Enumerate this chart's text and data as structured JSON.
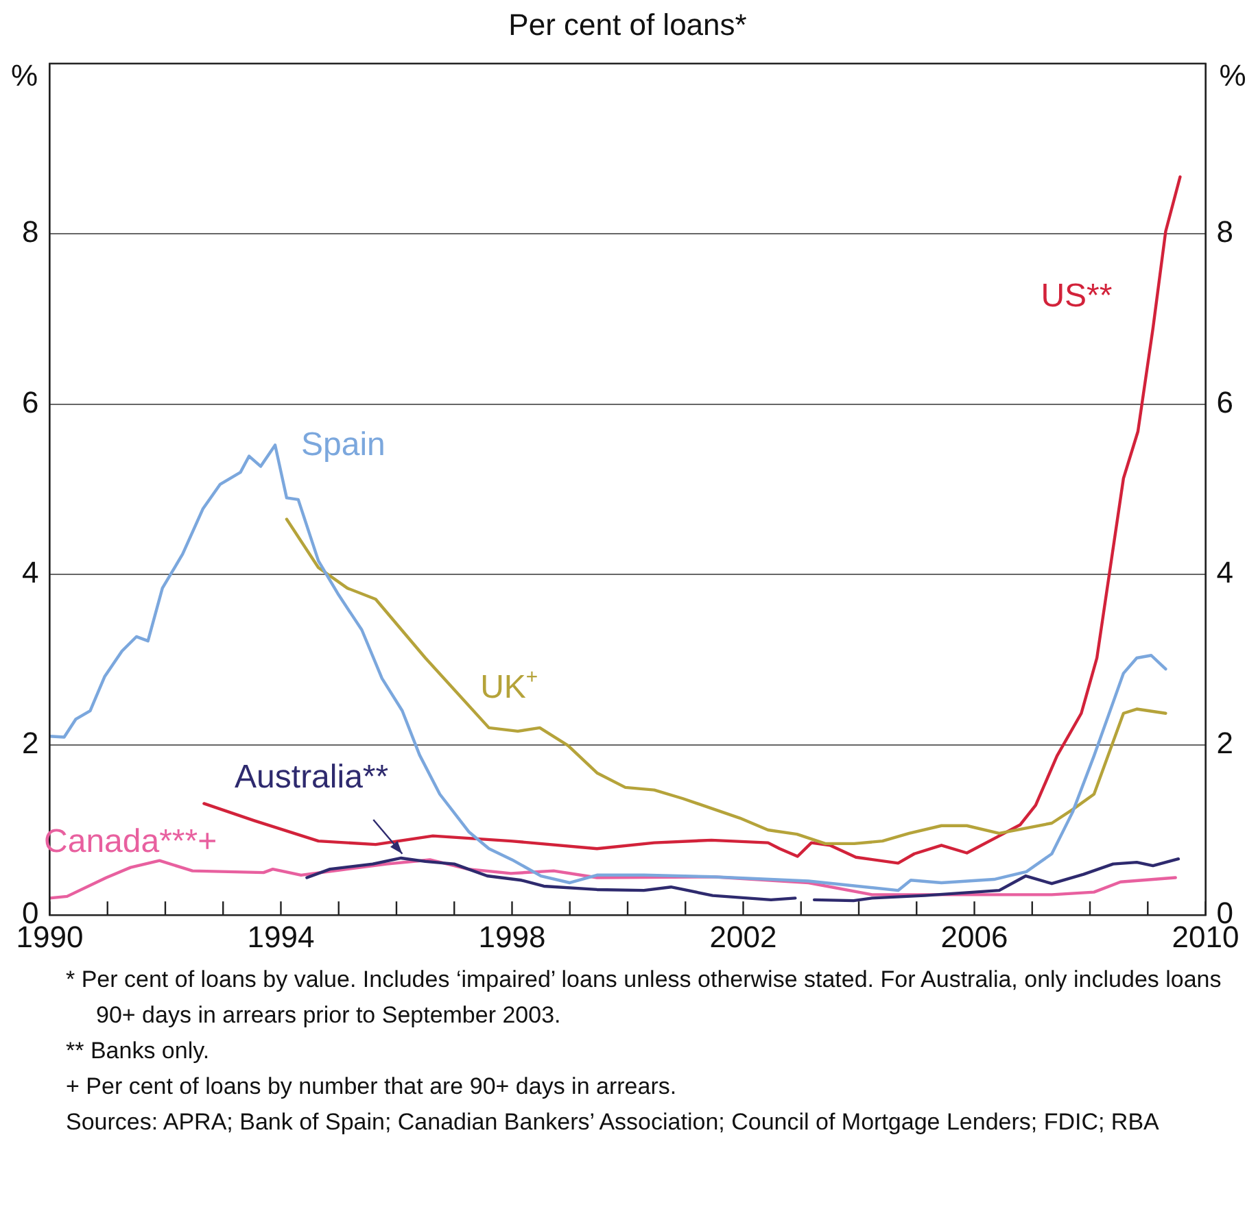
{
  "chart_data": {
    "type": "line",
    "subtitle": "Per cent of loans*",
    "ylabel": "%",
    "y2label": "%",
    "xlim": [
      1990,
      2010
    ],
    "xticks": [
      1990,
      {
        "value": 1991,
        "label": null
      },
      {
        "value": 1992,
        "label": null
      },
      {
        "value": 1993,
        "label": null
      },
      1994,
      {
        "value": 1995,
        "label": null
      },
      {
        "value": 1996,
        "label": null
      },
      {
        "value": 1997,
        "label": null
      },
      1998,
      {
        "value": 1999,
        "label": null
      },
      {
        "value": 2000,
        "label": null
      },
      {
        "value": 2001,
        "label": null
      },
      2002,
      {
        "value": 2003,
        "label": null
      },
      {
        "value": 2004,
        "label": null
      },
      {
        "value": 2005,
        "label": null
      },
      2006,
      {
        "value": 2007,
        "label": null
      },
      {
        "value": 2008,
        "label": null
      },
      {
        "value": 2009,
        "label": null
      },
      2010
    ],
    "ylim": [
      0,
      10
    ],
    "yticks": [
      0,
      2,
      4,
      6,
      8
    ],
    "y2lim": [
      0,
      10
    ],
    "y2ticks": [
      0,
      2,
      4,
      6,
      8
    ],
    "grid": "y",
    "line_style": "solid",
    "marker": "none",
    "series": [
      {
        "name": "Spain",
        "color": "#7ba7dd",
        "x": [
          1990,
          1990.25,
          1990.45,
          1990.7,
          1990.95,
          1991.25,
          1991.5,
          1991.7,
          1991.95,
          1992.3,
          1992.65,
          1992.95,
          1993.3,
          1993.45,
          1993.65,
          1993.9,
          1994.1,
          1994.3,
          1994.65,
          1995,
          1995.4,
          1995.75,
          1996.1,
          1996.4,
          1996.75,
          1997.25,
          1997.6,
          1998,
          1998.5,
          1999,
          1999.47,
          2000.28,
          2001.47,
          2003.13,
          2004.68,
          2004.9,
          2005.43,
          2006.34,
          2006.9,
          2007.34,
          2007.7,
          2008.07,
          2008.58,
          2008.81,
          2009.06,
          2009.31
        ],
        "values": [
          2.1,
          2.09,
          2.3,
          2.4,
          2.8,
          3.1,
          3.27,
          3.22,
          3.84,
          4.24,
          4.77,
          5.06,
          5.2,
          5.39,
          5.27,
          5.52,
          4.9,
          4.88,
          4.16,
          3.76,
          3.35,
          2.78,
          2.4,
          1.88,
          1.42,
          0.98,
          0.78,
          0.65,
          0.46,
          0.38,
          0.47,
          0.47,
          0.45,
          0.4,
          0.29,
          0.41,
          0.38,
          0.42,
          0.51,
          0.72,
          1.21,
          1.87,
          2.84,
          3.02,
          3.05,
          2.89
        ]
      },
      {
        "name": "UK$^{+}$",
        "color": "#b5a33a",
        "x": [
          1994.1,
          1994.65,
          1995.15,
          1995.64,
          1996.5,
          1997.6,
          1998.1,
          1998.48,
          1998.97,
          1999.47,
          1999.96,
          2000.46,
          2000.95,
          2001.94,
          2002.43,
          2002.93,
          2003.42,
          2003.92,
          2004.41,
          2004.87,
          2005.43,
          2005.87,
          2006.43,
          2007.34,
          2007.7,
          2008.07,
          2008.58,
          2008.81,
          2009.31
        ],
        "values": [
          4.65,
          4.08,
          3.84,
          3.71,
          3.02,
          2.2,
          2.16,
          2.2,
          1.99,
          1.67,
          1.5,
          1.47,
          1.37,
          1.14,
          1.0,
          0.95,
          0.84,
          0.84,
          0.87,
          0.96,
          1.05,
          1.05,
          0.96,
          1.08,
          1.24,
          1.42,
          2.37,
          2.42,
          2.37
        ]
      },
      {
        "name": "US**",
        "color": "#d2223a",
        "x": [
          1992.67,
          1993.54,
          1994.65,
          1995.64,
          1996.63,
          1997.98,
          1999.47,
          2000.46,
          2001.45,
          2002.43,
          2002.63,
          2002.94,
          2003.18,
          2003.5,
          2003.95,
          2004.68,
          2004.96,
          2005.43,
          2005.87,
          2006.43,
          2006.79,
          2007.06,
          2007.43,
          2007.85,
          2008.12,
          2008.58,
          2008.83,
          2009.09,
          2009.31,
          2009.56
        ],
        "values": [
          1.31,
          1.11,
          0.87,
          0.83,
          0.93,
          0.87,
          0.78,
          0.85,
          0.88,
          0.85,
          0.78,
          0.69,
          0.85,
          0.82,
          0.68,
          0.61,
          0.72,
          0.82,
          0.73,
          0.93,
          1.06,
          1.29,
          1.87,
          2.37,
          3.02,
          5.13,
          5.68,
          6.89,
          8.03,
          8.67
        ]
      },
      {
        "name": "Australia**",
        "color": "#2e2a6e",
        "x": [
          1994.45,
          1994.85,
          1995.59,
          1996.08,
          1996.5,
          1997,
          1997.57,
          1998.16,
          1998.55,
          1999.47,
          2000.28,
          2000.75,
          2001.47,
          2002.48,
          2002.9,
          2003.05,
          2003.23,
          2003.91,
          2004.23,
          2005.14,
          2006.43,
          2006.89,
          2007.34,
          2007.89,
          2008.4,
          2008.81,
          2009.09,
          2009.53
        ],
        "values": [
          0.44,
          0.54,
          0.6,
          0.67,
          0.63,
          0.6,
          0.46,
          0.41,
          0.34,
          0.3,
          0.29,
          0.33,
          0.23,
          0.18,
          0.2,
          null,
          0.18,
          0.17,
          0.2,
          0.23,
          0.29,
          0.46,
          0.37,
          0.48,
          0.6,
          0.62,
          0.58,
          0.66
        ]
      },
      {
        "name": "Canada***+",
        "color": "#e8609f",
        "x": [
          1990,
          1990.3,
          1990.98,
          1991.4,
          1991.9,
          1992.47,
          1993.7,
          1993.86,
          1994.35,
          1995.83,
          1996.58,
          1997.24,
          1997.98,
          1998.72,
          1999.47,
          2001.47,
          2003.13,
          2004.23,
          2005.87,
          2007.34,
          2008.07,
          2008.53,
          2009.48
        ],
        "values": [
          0.2,
          0.22,
          0.44,
          0.56,
          0.64,
          0.52,
          0.5,
          0.54,
          0.47,
          0.6,
          0.65,
          0.54,
          0.49,
          0.52,
          0.44,
          0.45,
          0.38,
          0.24,
          0.24,
          0.24,
          0.27,
          0.39,
          0.44
        ]
      }
    ],
    "annotations": [
      "*  Per cent of loans by value. Includes ‘impaired’ loans unless otherwise stated. For Australia, only includes loans 90+ days in arrears prior to September 2003.",
      "** Banks only.",
      "+  Per cent of loans by number that are 90+ days in arrears.",
      "Sources: APRA; Bank of Spain; Canadian Bankers’ Association; Council of Mortgage Lenders; FDIC; RBA"
    ]
  }
}
